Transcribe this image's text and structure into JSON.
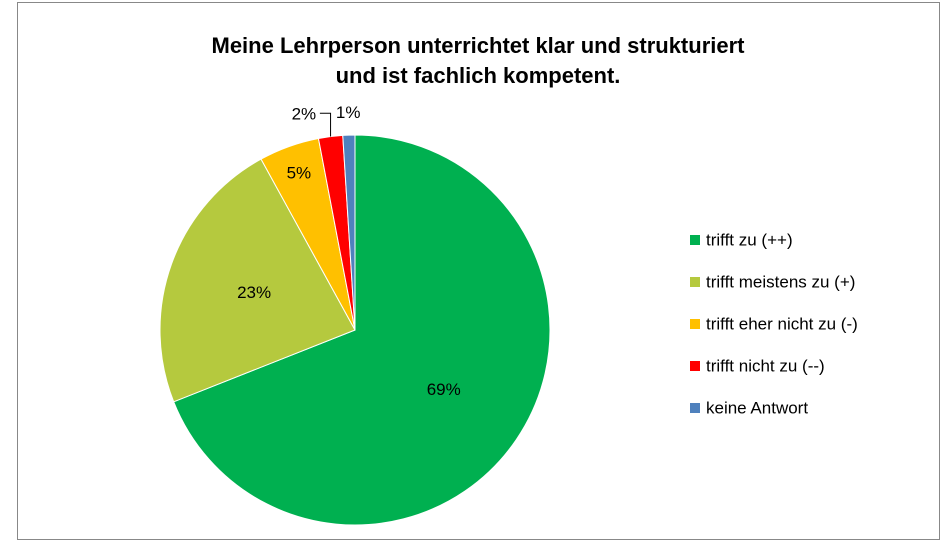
{
  "chart_data": {
    "type": "pie",
    "title": [
      "Meine Lehrperson unterrichtet klar und strukturiert",
      "und ist fachlich kompetent."
    ],
    "categories": [
      "trifft zu (++)",
      "trifft meistens zu (+)",
      "trifft eher nicht zu (-)",
      "trifft nicht zu (--)",
      "keine Antwort"
    ],
    "values": [
      69,
      23,
      5,
      2,
      1
    ],
    "value_labels": [
      "69%",
      "23%",
      "5%",
      "2%",
      "1%"
    ],
    "colors": [
      "#00b050",
      "#b5c93e",
      "#ffc000",
      "#ff0000",
      "#4f81bd"
    ],
    "legend": "right"
  }
}
